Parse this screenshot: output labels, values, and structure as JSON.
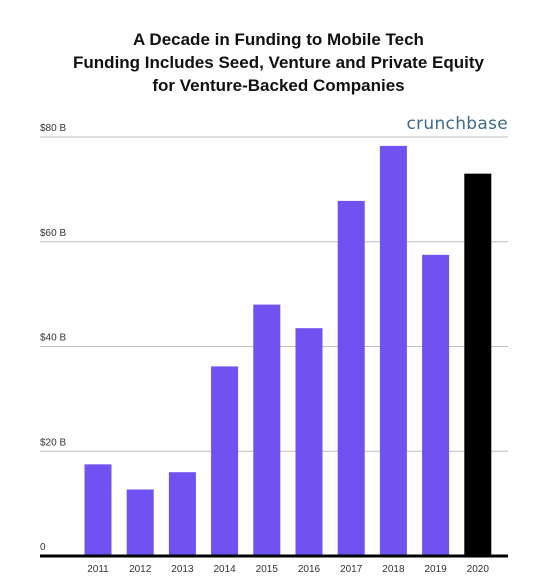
{
  "title": {
    "line1": "A Decade in Funding to Mobile Tech",
    "line2": "Funding Includes Seed, Venture and Private Equity",
    "line3": "for Venture-Backed Companies"
  },
  "brand": "crunchbase",
  "colors": {
    "bar": "#6f52f0",
    "highlight_bar": "#000000",
    "grid": "#bfbfbf",
    "axis": "#000000",
    "brand": "#3d6a8a"
  },
  "chart_data": {
    "type": "bar",
    "title": "A Decade in Funding to Mobile Tech",
    "subtitle": "Funding Includes Seed, Venture and Private Equity for Venture-Backed Companies",
    "categories": [
      "2011",
      "2012",
      "2013",
      "2014",
      "2015",
      "2016",
      "2017",
      "2018",
      "2019",
      "2020"
    ],
    "values": [
      17.5,
      12.7,
      16.0,
      36.2,
      48.0,
      43.5,
      67.8,
      78.3,
      57.5,
      73.0
    ],
    "unit": "B",
    "ylim": [
      0,
      80
    ],
    "yticks": [
      {
        "value": 80,
        "label": "$80 B"
      },
      {
        "value": 60,
        "label": "$60 B"
      },
      {
        "value": 40,
        "label": "$40 B"
      },
      {
        "value": 20,
        "label": "$20 B"
      },
      {
        "value": 0,
        "label": "0"
      }
    ],
    "highlight_category": "2020",
    "grid": true,
    "legend": "none"
  }
}
